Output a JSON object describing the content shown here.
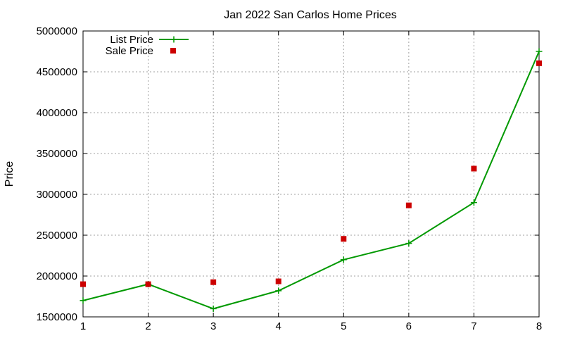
{
  "chart_data": {
    "type": "line",
    "title": "Jan 2022 San Carlos Home Prices",
    "xlabel": "",
    "ylabel": "Price",
    "xlim": [
      1,
      8
    ],
    "ylim": [
      1500000,
      5000000
    ],
    "x_ticks": [
      1,
      2,
      3,
      4,
      5,
      6,
      7,
      8
    ],
    "y_ticks": [
      1500000,
      2000000,
      2500000,
      3000000,
      3500000,
      4000000,
      4500000,
      5000000
    ],
    "grid": true,
    "legend_position": "top-left",
    "series": [
      {
        "name": "List Price",
        "style": "line-with-plus-markers",
        "color": "#009900",
        "x": [
          1,
          2,
          3,
          4,
          5,
          6,
          7,
          8
        ],
        "y": [
          1700000,
          1900000,
          1600000,
          1820000,
          2200000,
          2400000,
          2900000,
          4750000
        ]
      },
      {
        "name": "Sale Price",
        "style": "square-markers",
        "color": "#cc0000",
        "x": [
          1,
          2,
          3,
          4,
          5,
          6,
          7,
          8
        ],
        "y": [
          1900000,
          1900000,
          1925000,
          1935000,
          2455000,
          2865000,
          3315000,
          4605000
        ]
      }
    ]
  }
}
